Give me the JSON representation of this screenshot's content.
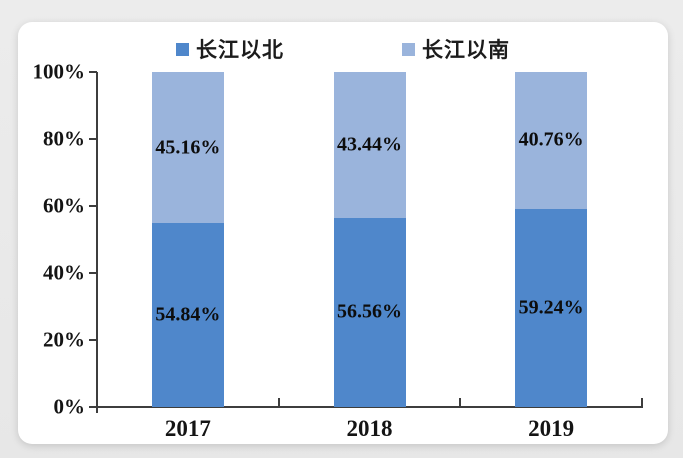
{
  "chart_data": {
    "type": "bar",
    "subtype": "stacked-percentage-column",
    "title": "",
    "categories": [
      "2017",
      "2018",
      "2019"
    ],
    "series": [
      {
        "name": "长江以北",
        "color": "#4f87cb",
        "values": [
          54.84,
          56.56,
          59.24
        ],
        "labels": [
          "54.84%",
          "56.56%",
          "59.24%"
        ]
      },
      {
        "name": "长江以南",
        "color": "#9ab4dc",
        "values": [
          45.16,
          43.44,
          40.76
        ],
        "labels": [
          "45.16%",
          "43.44%",
          "40.76%"
        ]
      }
    ],
    "y_ticks": [
      "0%",
      "20%",
      "40%",
      "60%",
      "80%",
      "100%"
    ],
    "ylim": [
      0,
      100
    ],
    "grid": false,
    "legend_position": "top",
    "axis_color": "#3d3d3d",
    "background_color": "#ffffff"
  }
}
